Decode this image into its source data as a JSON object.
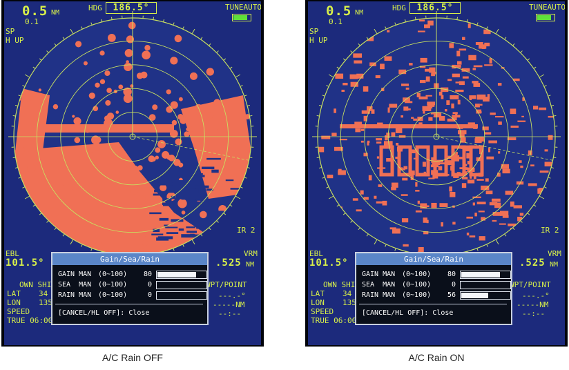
{
  "panels": [
    {
      "range": "0.5",
      "range_unit": "NM",
      "ring_interval": "0.1",
      "hdg_label": "HDG",
      "hdg_value": "186.5°",
      "tune_label": "TUNEAUTO",
      "mode1": "SP",
      "mode2": "H UP",
      "ir_label": "IR 2",
      "ebl_label": "EBL",
      "ebl_value": "101.5°",
      "vrm_label": "VRM",
      "vrm_value": ".525",
      "vrm_unit": "NM",
      "own_ship": "OWN SHIP",
      "lat_label": "LAT",
      "lat_value": "34",
      "lon_label": "LON",
      "lon_value": "135",
      "speed_label": "SPEED",
      "true_time": "TRUE 06:00",
      "waypoint": "WPT/POINT",
      "wp_line1": "---.-°",
      "wp_line2": "-----NM",
      "wp_line3": "--:--",
      "dialog": {
        "title": "Gain/Sea/Rain",
        "rows": [
          {
            "name": "GAIN MAN",
            "range": "(0~100)",
            "value": "80",
            "level": 0.8
          },
          {
            "name": "SEA  MAN",
            "range": "(0~100)",
            "value": "0",
            "level": 0.0
          },
          {
            "name": "RAIN MAN",
            "range": "(0~100)",
            "value": "0",
            "level": 0.0
          }
        ],
        "close_text": "[CANCEL/HL OFF]: Close"
      },
      "rain": false,
      "caption": "A/C Rain OFF"
    },
    {
      "range": "0.5",
      "range_unit": "NM",
      "ring_interval": "0.1",
      "hdg_label": "HDG",
      "hdg_value": "186.5°",
      "tune_label": "TUNEAUTO",
      "mode1": "SP",
      "mode2": "H UP",
      "ir_label": "IR 2",
      "ebl_label": "EBL",
      "ebl_value": "101.5°",
      "vrm_label": "VRM",
      "vrm_value": ".525",
      "vrm_unit": "NM",
      "own_ship": "OWN SHIP",
      "lat_label": "LAT",
      "lat_value": "34",
      "lon_label": "LON",
      "lon_value": "135",
      "speed_label": "SPEED",
      "true_time": "TRUE 06:00",
      "waypoint": "WPT/POINT",
      "wp_line1": "---.-°",
      "wp_line2": "-----NM",
      "wp_line3": "--:--",
      "dialog": {
        "title": "Gain/Sea/Rain",
        "rows": [
          {
            "name": "GAIN MAN",
            "range": "(0~100)",
            "value": "80",
            "level": 0.8
          },
          {
            "name": "SEA  MAN",
            "range": "(0~100)",
            "value": "0",
            "level": 0.0
          },
          {
            "name": "RAIN MAN",
            "range": "(0~100)",
            "value": "56",
            "level": 0.56
          }
        ],
        "close_text": "[CANCEL/HL OFF]: Close"
      },
      "rain": true,
      "caption": "A/C Rain ON"
    }
  ],
  "colors": {
    "screen_bg": "#1c2a7c",
    "echo": "#f07055",
    "text": "#d8f04a",
    "rings": "#c8e060",
    "dialog_title": "#5a86c8"
  }
}
